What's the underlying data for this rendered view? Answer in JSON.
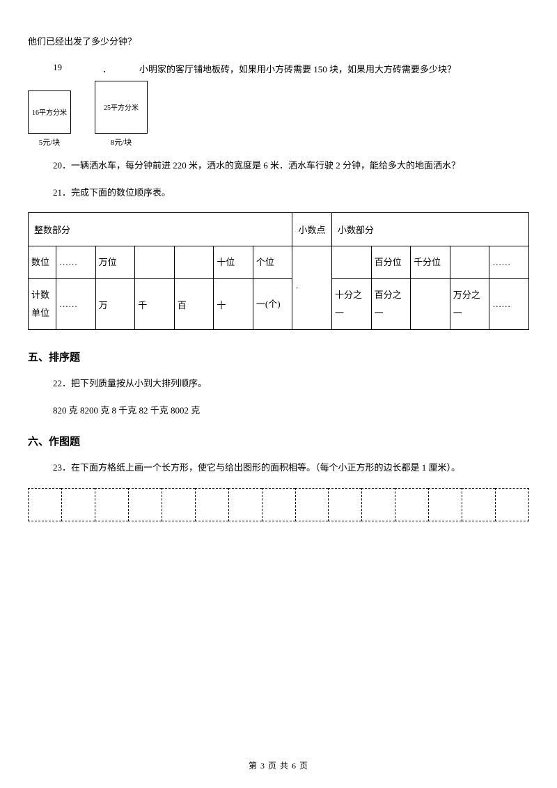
{
  "q_prev_tail": "他们已经出发了多少分钟？",
  "q19": {
    "num": "19",
    "dot": "．",
    "text": "小明家的客厅铺地板砖，如果用小方砖需要 150 块，如果用大方砖需要多少块？",
    "tile_small_label": "16平方分米",
    "tile_large_label": "25平方分米",
    "tile_small_price": "5元/块",
    "tile_large_price": "8元/块"
  },
  "q20": "20．一辆洒水车，每分钟前进 220 米，洒水的宽度是 6 米．洒水车行驶 2 分钟，能给多大的地面洒水？",
  "q21": "21．完成下面的数位顺序表。",
  "place_table": {
    "hdr_int": "整数部分",
    "hdr_point": "小数点",
    "hdr_dec": "小数部分",
    "row1_label": "数位",
    "row2_label": "计数单位",
    "ell": "……",
    "wan_wei": "万位",
    "shi_wei": "十位",
    "ge_wei": "个位",
    "bai_fen_wei": "百分位",
    "qian_fen_wei": "千分位",
    "wan": "万",
    "qian": "千",
    "bai": "百",
    "shi": "十",
    "yi_ge": "一(个)",
    "shifen_zy": "十分之一",
    "baifen_zy": "百分之一",
    "wanfen_zy": "万分之一",
    "dot": "·"
  },
  "section5": "五、排序题",
  "q22_a": "22．把下列质量按从小到大排列顺序。",
  "q22_b": "820 克 8200 克 8 千克 82 千克 8002 克",
  "section6": "六、作图题",
  "q23": "23．在下面方格纸上画一个长方形，使它与给出图形的面积相等。（每个小正方形的边长都是 1 厘米）。",
  "footer": "第 3 页 共 6 页",
  "grid_cols": 15,
  "colors": {
    "text": "#000000",
    "bg": "#ffffff",
    "border": "#000000"
  }
}
